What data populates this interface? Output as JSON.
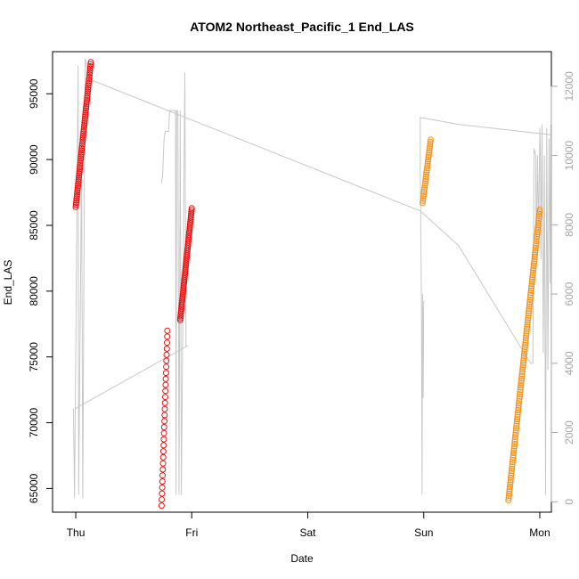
{
  "chart_data": {
    "type": "scatter",
    "title": "ATOM2 Northeast_Pacific_1 End_LAS",
    "xlabel": "Date",
    "ylabel": "End_LAS",
    "x_ticks": [
      "Thu",
      "Fri",
      "Sat",
      "Sun",
      "Mon"
    ],
    "x_tick_days": [
      0,
      1,
      2,
      3,
      4
    ],
    "xlim_days": [
      -0.2,
      4.1
    ],
    "ylim": [
      63200,
      98200
    ],
    "y_ticks": [
      65000,
      70000,
      75000,
      80000,
      85000,
      90000,
      95000
    ],
    "y2lim": [
      -300,
      13000
    ],
    "y2_ticks": [
      0,
      2000,
      4000,
      6000,
      8000,
      10000,
      12000
    ],
    "grid": false,
    "colors": {
      "series_red": "#ee1111",
      "series_orange": "#f39320",
      "right_axis_line": "#c8c8c8",
      "right_axis_text": "#a6a6a6"
    },
    "series": [
      {
        "color_key": "series_red",
        "segments": [
          {
            "x_start": 0.0,
            "x_end": 0.13,
            "y_start": 86400,
            "y_end": 97400,
            "n": 70
          },
          {
            "x_start": 0.74,
            "x_end": 0.79,
            "y_start": 63700,
            "y_end": 77000,
            "n": 30
          },
          {
            "x_start": 0.9,
            "x_end": 1.0,
            "y_start": 77800,
            "y_end": 86300,
            "n": 60
          }
        ]
      },
      {
        "color_key": "series_orange",
        "segments": [
          {
            "x_start": 2.99,
            "x_end": 3.06,
            "y_start": 86700,
            "y_end": 91500,
            "n": 30
          },
          {
            "x_start": 3.73,
            "x_end": 4.0,
            "y_start": 64100,
            "y_end": 86200,
            "n": 130
          }
        ]
      }
    ],
    "right_axis_series": {
      "points": [
        [
          -0.02,
          2700
        ],
        [
          -0.01,
          100
        ],
        [
          0.02,
          12600
        ],
        [
          0.025,
          200
        ],
        [
          0.05,
          9800
        ],
        [
          0.06,
          100
        ],
        [
          0.08,
          12800
        ],
        [
          0.12,
          12200
        ],
        [
          2.97,
          8400
        ],
        [
          3.3,
          7400
        ],
        [
          3.92,
          4000
        ],
        [
          3.94,
          4000
        ],
        [
          3.95,
          10200
        ],
        [
          3.965,
          10000
        ],
        [
          3.97,
          7100
        ],
        [
          3.98,
          10000
        ],
        [
          3.99,
          7800
        ],
        [
          4.0,
          10800
        ],
        [
          4.005,
          10200
        ],
        [
          4.01,
          7000
        ],
        [
          4.02,
          10900
        ],
        [
          4.03,
          4300
        ],
        [
          4.04,
          10000
        ],
        [
          4.05,
          200
        ],
        [
          4.06,
          10800
        ],
        [
          4.07,
          3800
        ],
        [
          4.08,
          10500
        ],
        [
          4.09,
          6300
        ],
        [
          4.095,
          10900
        ],
        [
          4.1,
          10600
        ],
        [
          3.3,
          10900
        ],
        [
          2.97,
          11100
        ],
        [
          2.97,
          9500
        ],
        [
          2.98,
          5800
        ],
        [
          2.985,
          200
        ],
        [
          2.99,
          6000
        ],
        [
          2.995,
          3000
        ],
        [
          3.0,
          5800
        ]
      ],
      "early_points": [
        [
          0.74,
          9200
        ],
        [
          0.75,
          9500
        ],
        [
          0.76,
          10400
        ],
        [
          0.77,
          10700
        ],
        [
          0.8,
          10700
        ],
        [
          0.81,
          11300
        ],
        [
          0.86,
          11300
        ],
        [
          0.865,
          200
        ],
        [
          0.87,
          11300
        ],
        [
          0.88,
          11300
        ],
        [
          0.89,
          200
        ],
        [
          0.9,
          11300
        ],
        [
          0.91,
          200
        ],
        [
          0.94,
          12400
        ],
        [
          0.95,
          4500
        ],
        [
          0.96,
          4500
        ],
        [
          0.0,
          2700
        ]
      ]
    }
  }
}
